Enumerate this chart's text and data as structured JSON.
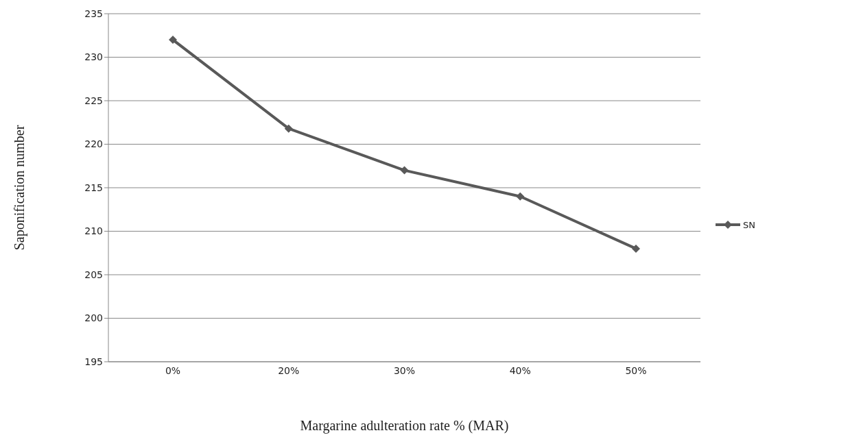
{
  "chart_data": {
    "type": "line",
    "xlabel": "Margarine adulteration rate % (MAR)",
    "ylabel": "Saponification number",
    "categories": [
      "0%",
      "20%",
      "30%",
      "40%",
      "50%"
    ],
    "series": [
      {
        "name": "SN",
        "color": "#595959",
        "values": [
          232,
          221.8,
          217,
          214,
          208
        ]
      }
    ],
    "ylim": [
      195,
      235
    ],
    "yticks": [
      195,
      200,
      205,
      210,
      215,
      220,
      225,
      230,
      235
    ],
    "grid": "y",
    "legend": "right",
    "marker": "diamond",
    "line_style": "solid"
  }
}
